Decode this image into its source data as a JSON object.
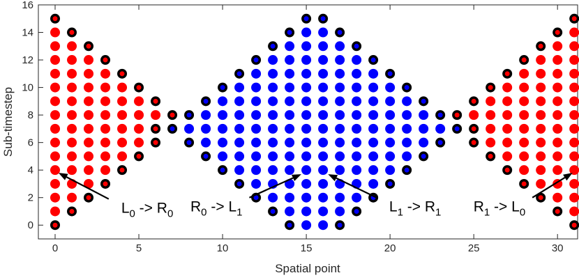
{
  "chart_data": {
    "type": "scatter",
    "xlabel": "Spatial point",
    "ylabel": "Sub-timestep",
    "xlim": [
      -1,
      31.2
    ],
    "ylim": [
      -1,
      16
    ],
    "xticks": [
      0,
      5,
      10,
      15,
      20,
      25,
      30
    ],
    "yticks": [
      0,
      2,
      4,
      6,
      8,
      10,
      12,
      14,
      16
    ],
    "series": [
      {
        "color": "#ff0000",
        "marker": "filled",
        "y": [
          0,
          1,
          2,
          3,
          4,
          5,
          6,
          7,
          8,
          9,
          10,
          11,
          12,
          13,
          14,
          15
        ],
        "x": [
          [],
          [
            0,
            31
          ],
          [
            0,
            1,
            30,
            31
          ],
          [
            0,
            1,
            2,
            29,
            30,
            31
          ],
          [
            0,
            1,
            2,
            3,
            28,
            29,
            30,
            31
          ],
          [
            0,
            1,
            2,
            3,
            4,
            27,
            28,
            29,
            30,
            31
          ],
          [
            0,
            1,
            2,
            3,
            4,
            5,
            26,
            27,
            28,
            29,
            30,
            31
          ],
          [
            0,
            1,
            2,
            3,
            4,
            5,
            26,
            27,
            28,
            29,
            30,
            31
          ],
          [
            0,
            1,
            2,
            3,
            4,
            5,
            6,
            25,
            26,
            27,
            28,
            29,
            30,
            31
          ],
          [
            0,
            1,
            2,
            3,
            4,
            5,
            26,
            27,
            28,
            29,
            30,
            31
          ],
          [
            0,
            1,
            2,
            3,
            4,
            27,
            28,
            29,
            30,
            31
          ],
          [
            0,
            1,
            2,
            3,
            28,
            29,
            30,
            31
          ],
          [
            0,
            1,
            2,
            29,
            30,
            31
          ],
          [
            0,
            1,
            30,
            31
          ],
          [
            0,
            31
          ],
          []
        ]
      },
      {
        "color": "#0000ff",
        "marker": "filled",
        "y": [
          0,
          1,
          2,
          3,
          4,
          5,
          6,
          7,
          8,
          9,
          10,
          11,
          12,
          13,
          14,
          15
        ],
        "x": [
          [
            15,
            16
          ],
          [
            14,
            15,
            16,
            17
          ],
          [
            13,
            14,
            15,
            16,
            17,
            18
          ],
          [
            12,
            13,
            14,
            15,
            16,
            17,
            18,
            19
          ],
          [
            11,
            12,
            13,
            14,
            15,
            16,
            17,
            18,
            19,
            20
          ],
          [
            10,
            11,
            12,
            13,
            14,
            15,
            16,
            17,
            18,
            19,
            20,
            21
          ],
          [
            9,
            10,
            11,
            12,
            13,
            14,
            15,
            16,
            17,
            18,
            19,
            20,
            21,
            22
          ],
          [
            8,
            9,
            10,
            11,
            12,
            13,
            14,
            15,
            16,
            17,
            18,
            19,
            20,
            21,
            22,
            23
          ],
          [
            9,
            10,
            11,
            12,
            13,
            14,
            15,
            16,
            17,
            18,
            19,
            20,
            21,
            22
          ],
          [
            10,
            11,
            12,
            13,
            14,
            15,
            16,
            17,
            18,
            19,
            20,
            21
          ],
          [
            11,
            12,
            13,
            14,
            15,
            16,
            17,
            18,
            19,
            20
          ],
          [
            12,
            13,
            14,
            15,
            16,
            17,
            18,
            19
          ],
          [
            13,
            14,
            15,
            16,
            17,
            18
          ],
          [
            14,
            15,
            16,
            17
          ],
          [
            15,
            16
          ],
          []
        ]
      },
      {
        "color": "#ff0000",
        "marker": "ring",
        "y": [
          0,
          1,
          2,
          3,
          4,
          5,
          6,
          7,
          8,
          9,
          10,
          11,
          12,
          13,
          14,
          15
        ],
        "x": [
          [
            0,
            31
          ],
          [
            1,
            30
          ],
          [
            2,
            29
          ],
          [
            3,
            28
          ],
          [
            4,
            27
          ],
          [
            5,
            26
          ],
          [
            6,
            25
          ],
          [
            6,
            25
          ],
          [
            7,
            24
          ],
          [
            6,
            25
          ],
          [
            5,
            26
          ],
          [
            4,
            27
          ],
          [
            3,
            28
          ],
          [
            2,
            29
          ],
          [
            1,
            30
          ],
          [
            0,
            31
          ]
        ]
      },
      {
        "color": "#0000ff",
        "marker": "ring",
        "y": [
          0,
          1,
          2,
          3,
          4,
          5,
          6,
          7,
          8,
          9,
          10,
          11,
          12,
          13,
          14,
          15
        ],
        "x": [
          [
            14,
            17
          ],
          [
            13,
            18
          ],
          [
            12,
            19
          ],
          [
            11,
            20
          ],
          [
            10,
            21
          ],
          [
            9,
            22
          ],
          [
            8,
            23
          ],
          [
            7,
            24
          ],
          [
            8,
            23
          ],
          [
            9,
            22
          ],
          [
            10,
            21
          ],
          [
            11,
            20
          ],
          [
            12,
            19
          ],
          [
            13,
            18
          ],
          [
            14,
            17
          ],
          [
            15,
            16
          ]
        ]
      }
    ],
    "annotations": [
      {
        "label": [
          "L",
          "0",
          " -> R",
          "0"
        ],
        "xy": [
          0.2,
          3.8
        ],
        "xytext": [
          3.2,
          1.9
        ]
      },
      {
        "label": [
          "R",
          "0",
          " -> L",
          "1"
        ],
        "xy": [
          14.7,
          3.7
        ],
        "xytext": [
          11.6,
          2.0
        ]
      },
      {
        "label": [
          "L",
          "1",
          " -> R",
          "1"
        ],
        "xy": [
          16.3,
          3.7
        ],
        "xytext": [
          19.2,
          2.0
        ]
      },
      {
        "label": [
          "R",
          "1",
          " -> L",
          "0"
        ],
        "xy": [
          30.9,
          3.8
        ],
        "xytext": [
          28.5,
          2.0
        ]
      }
    ]
  }
}
